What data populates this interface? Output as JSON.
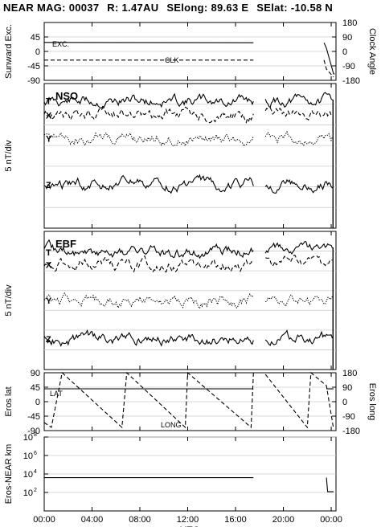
{
  "title": {
    "prefix": "NEAR MAG: 00037",
    "r": "R: 1.47AU",
    "selong": "SElong:   89.63 E",
    "selat": "SElat:  -10.58 N"
  },
  "chart_data": [
    {
      "type": "line",
      "panel": "sunward",
      "ylabel_left": "Sunward Exc.",
      "ylabel_right": "Clock Angle",
      "yticks_left": [
        "45",
        "0",
        "-45",
        "-90"
      ],
      "yticks_right": [
        "180",
        "90",
        "0",
        "-90",
        "-180"
      ],
      "ylim_left": [
        -90,
        90
      ],
      "series": [
        {
          "name": "EXC.",
          "style": "solid",
          "x": [
            0,
            17.5,
            18.4,
            23.4,
            23.6,
            24.2,
            24.3
          ],
          "y": [
            28,
            27,
            null,
            27,
            10,
            -70,
            -70
          ]
        },
        {
          "name": "CLK",
          "style": "dashed",
          "x": [
            0,
            17.5,
            18.4,
            23.4,
            23.6,
            24.2
          ],
          "y": [
            -27,
            -27,
            null,
            -27,
            -55,
            -80
          ]
        }
      ]
    },
    {
      "type": "line",
      "panel": "NSO",
      "label": "NSO",
      "ylabel": "5 nT/div",
      "series": [
        {
          "name": "T",
          "style": "solid",
          "level": 0.12
        },
        {
          "name": "X",
          "style": "dashed",
          "level": 0.22
        },
        {
          "name": "Y",
          "style": "dotted",
          "level": 0.38
        },
        {
          "name": "Z",
          "style": "solid",
          "level": 0.7
        }
      ]
    },
    {
      "type": "line",
      "panel": "EBF",
      "label": "EBF",
      "ylabel": "5 nT/div",
      "series": [
        {
          "name": "T",
          "style": "solid",
          "level": 0.15
        },
        {
          "name": "X",
          "style": "dashed",
          "level": 0.24
        },
        {
          "name": "Y",
          "style": "dotted",
          "level": 0.5
        },
        {
          "name": "Z",
          "style": "solid",
          "level": 0.78
        }
      ]
    },
    {
      "type": "line",
      "panel": "eros",
      "ylabel_left": "Eros lat",
      "ylabel_right": "Eros long",
      "yticks_left": [
        "90",
        "45",
        "0",
        "-45",
        "-90"
      ],
      "yticks_right": [
        "180",
        "90",
        "0",
        "-90",
        "-180"
      ],
      "ylim_left": [
        -90,
        90
      ],
      "series": [
        {
          "name": "LAT",
          "style": "solid",
          "x": [
            0,
            17.5,
            18.4,
            23.6,
            24.2
          ],
          "y": [
            40,
            40,
            null,
            40,
            40
          ]
        },
        {
          "name": "LONG",
          "style": "dashed",
          "x": [
            0,
            0.6,
            1.5,
            6.5,
            6.9,
            11.8,
            12.0,
            17.3,
            17.5,
            18.4,
            18.5,
            22.0,
            22.3,
            23.6,
            24.2
          ],
          "y": [
            -130,
            -160,
            180,
            -160,
            180,
            -160,
            180,
            -160,
            180,
            null,
            170,
            -160,
            180,
            100,
            -170
          ]
        }
      ]
    },
    {
      "type": "line",
      "panel": "distance",
      "ylabel": "Eros-NEAR km",
      "yticks": [
        "10^8",
        "10^6",
        "10^4",
        "10^2"
      ],
      "yscale": "log",
      "ylim": [
        1,
        100000000
      ],
      "series": [
        {
          "name": "distance",
          "style": "solid",
          "x": [
            0,
            17.5,
            18.4,
            23.6,
            23.7,
            24.2
          ],
          "y": [
            4000,
            4000,
            null,
            4000,
            120,
            120
          ]
        }
      ]
    }
  ],
  "xaxis": {
    "label": "UTC",
    "ticks": [
      "00:00",
      "04:00",
      "08:00",
      "12:00",
      "16:00",
      "20:00",
      "00:00"
    ],
    "xlim": [
      0,
      24.4
    ]
  }
}
